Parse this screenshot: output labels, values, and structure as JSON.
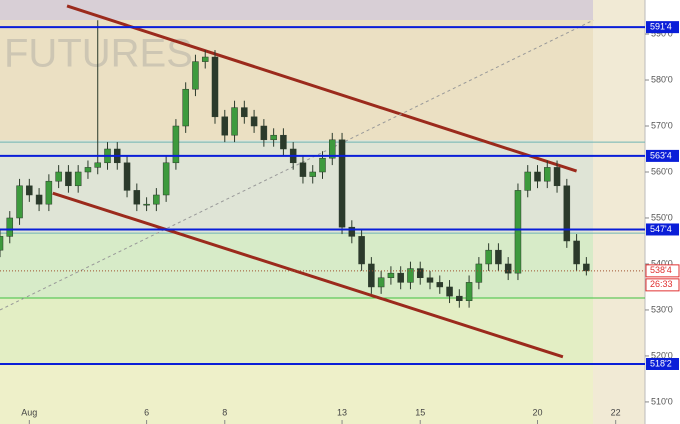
{
  "chart_data": {
    "type": "candlestick",
    "watermark": "FUTURES",
    "open": [
      543,
      546,
      550,
      557,
      555,
      553,
      558,
      560,
      557,
      560,
      561,
      562,
      565,
      562,
      556,
      553,
      553,
      555,
      562,
      570,
      578,
      584,
      585,
      572,
      568,
      574,
      572,
      570,
      567,
      568,
      565,
      562,
      559,
      560,
      563,
      567,
      548,
      546,
      540,
      535,
      537,
      538,
      536,
      539,
      537,
      536,
      535,
      533,
      532,
      536,
      540,
      543,
      540,
      538,
      556,
      560,
      558,
      561,
      557,
      545,
      540
    ],
    "high": [
      547.5,
      551.5,
      558.5,
      558.5,
      556.5,
      559.5,
      561.5,
      561.5,
      561.5,
      562.5,
      593,
      566.5,
      566.5,
      563.5,
      557.5,
      554.5,
      556.5,
      563.5,
      571.5,
      579.5,
      585.5,
      586.5,
      586.5,
      573.5,
      575.5,
      575.5,
      573.5,
      571.5,
      569.5,
      569.5,
      566.5,
      563.5,
      561.5,
      564.5,
      568.5,
      568.5,
      549.5,
      547.5,
      541.5,
      538.5,
      539.5,
      539.5,
      540.5,
      540.5,
      538.5,
      537.5,
      536.5,
      534.5,
      537.5,
      541.5,
      544.5,
      544.5,
      541.5,
      557.5,
      561.5,
      561.5,
      562.5,
      562.5,
      558.5,
      546.5,
      541.5
    ],
    "low": [
      541.5,
      544.5,
      548.5,
      553.5,
      551.5,
      551.5,
      556.5,
      555.5,
      555.5,
      558.5,
      559.5,
      560.5,
      560.5,
      554.5,
      551.5,
      551.5,
      551.5,
      553.5,
      560.5,
      568.5,
      576.5,
      582.5,
      570.5,
      566.5,
      566.5,
      570.5,
      568.5,
      565.5,
      565.5,
      563.5,
      560.5,
      557.5,
      557.5,
      558.5,
      561.5,
      546.5,
      544.5,
      538.5,
      533.5,
      533.5,
      535.5,
      534.5,
      534.5,
      535.5,
      534.5,
      533.5,
      531.5,
      530.5,
      530.5,
      534.5,
      538.5,
      538.5,
      536.5,
      536.5,
      554.5,
      556.5,
      556.5,
      555.5,
      543.5,
      538.5,
      537.5
    ],
    "close": [
      546,
      550,
      557,
      555,
      553,
      558,
      560,
      557,
      560,
      561,
      562,
      565,
      562,
      556,
      553,
      553,
      555,
      562,
      570,
      578,
      584,
      585,
      572,
      568,
      574,
      572,
      570,
      567,
      568,
      565,
      562,
      559,
      560,
      563,
      567,
      548,
      546,
      540,
      535,
      537,
      538,
      536,
      539,
      537,
      536,
      535,
      533,
      532,
      536,
      540,
      543,
      540,
      538,
      556,
      560,
      558,
      561,
      557,
      545,
      540,
      538.5
    ],
    "up_color": "#3d9a3d",
    "down_color": "#2b3a2b",
    "xlim": [
      0,
      66
    ],
    "xticks": [
      {
        "value": 3,
        "label": "Aug"
      },
      {
        "value": 15,
        "label": "6"
      },
      {
        "value": 23,
        "label": "8"
      },
      {
        "value": 35,
        "label": "13"
      },
      {
        "value": 43,
        "label": "15"
      },
      {
        "value": 55,
        "label": "20"
      },
      {
        "value": 63,
        "label": "22"
      }
    ],
    "ylim": [
      505.2,
      597.4
    ],
    "yticks": [
      {
        "value": 510,
        "label": "510'0"
      },
      {
        "value": 520,
        "label": "520'0"
      },
      {
        "value": 530,
        "label": "530'0"
      },
      {
        "value": 540,
        "label": "540'0"
      },
      {
        "value": 550,
        "label": "550'0"
      },
      {
        "value": 560,
        "label": "560'0"
      },
      {
        "value": 570,
        "label": "570'0"
      },
      {
        "value": 580,
        "label": "580'0"
      },
      {
        "value": 590,
        "label": "590'0"
      }
    ],
    "guide_lines": [
      {
        "value": 566.5,
        "color": "#6fb3b3"
      },
      {
        "value": 546.7,
        "color": "#6fb3b3"
      },
      {
        "value": 532.6,
        "color": "#3fc03f"
      }
    ],
    "levels": [
      {
        "value": 591.5,
        "label": "591'4",
        "color": "#0a1ed8"
      },
      {
        "value": 563.5,
        "label": "563'4",
        "color": "#0a1ed8"
      },
      {
        "value": 547.5,
        "label": "547'4",
        "color": "#0a1ed8"
      },
      {
        "value": 518.25,
        "label": "518'2",
        "color": "#0a1ed8"
      }
    ],
    "current": {
      "value": 538.5,
      "label": "538'4",
      "color": "#e03030"
    },
    "timer": "26:33",
    "trend_lines": [
      {
        "x": [
          6.86,
          59.0
        ],
        "y": [
          596.1,
          560.2
        ],
        "color": "#9b2a1c",
        "dashed": false
      },
      {
        "x": [
          5.4,
          57.6
        ],
        "y": [
          555.4,
          519.8
        ],
        "color": "#9b2a1c",
        "dashed": false
      },
      {
        "x": [
          0,
          60.7
        ],
        "y": [
          530,
          593
        ],
        "color": "#999999",
        "dashed": true
      }
    ]
  }
}
